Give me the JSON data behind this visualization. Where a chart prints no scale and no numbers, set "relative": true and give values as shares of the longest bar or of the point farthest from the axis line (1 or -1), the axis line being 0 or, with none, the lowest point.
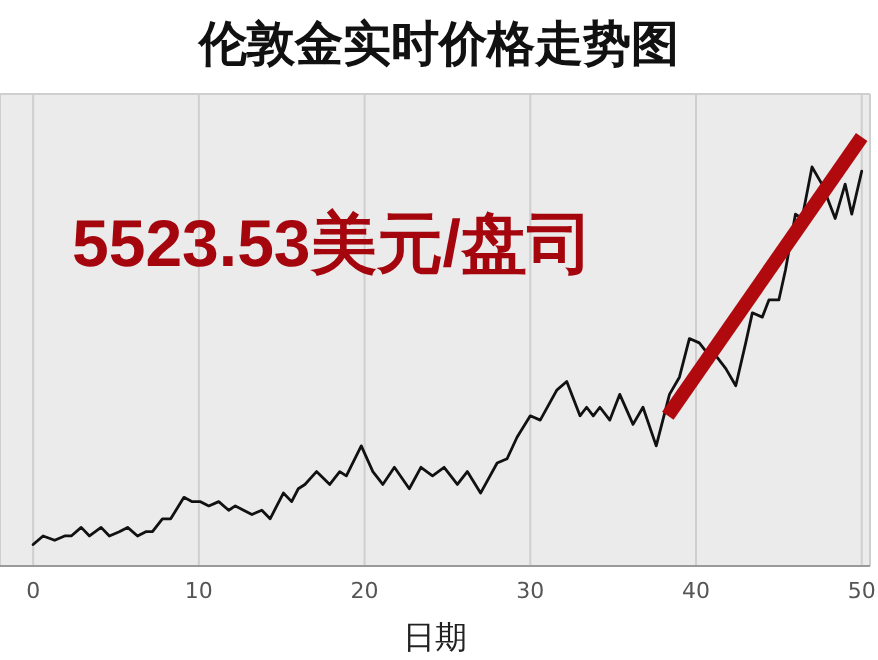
{
  "chart_data": {
    "type": "line",
    "title": "伦敦金实时价格走势图",
    "xlabel": "日期",
    "relative": true,
    "grid": true,
    "legend": false,
    "marker": "none",
    "xlim": [
      -2,
      50.5
    ],
    "xticks": [
      0,
      10,
      20,
      30,
      40,
      50
    ],
    "annotations": [
      "5523.53美元/盘司"
    ],
    "series": [
      {
        "color": "#111111",
        "x": [
          0,
          0.6,
          1.3,
          1.9,
          2.3,
          2.9,
          3.4,
          4.1,
          4.6,
          5.2,
          5.7,
          6.3,
          6.8,
          7.2,
          7.8,
          8.3,
          9.1,
          9.6,
          10.1,
          10.6,
          11.2,
          11.8,
          12.2,
          12.7,
          13.2,
          13.8,
          14.3,
          15.1,
          15.6,
          16,
          16.4,
          17.1,
          17.9,
          18.5,
          18.9,
          19.8,
          20.5,
          21.1,
          21.8,
          22.7,
          23.4,
          24.1,
          24.8,
          25.6,
          26.2,
          27,
          28,
          28.6,
          29.2,
          30,
          30.6,
          31.6,
          32.2,
          33,
          33.4,
          33.8,
          34.2,
          34.8,
          35.4,
          36.2,
          36.8,
          37.6,
          38.4,
          39,
          39.6,
          40.2,
          40.6,
          41,
          41.8,
          42.4,
          43,
          43.4,
          44,
          44.4,
          45,
          45.4,
          46,
          46.4,
          47,
          47.6,
          48.4,
          49,
          49.4,
          50
        ],
        "values": [
          0.05,
          0.07,
          0.06,
          0.07,
          0.07,
          0.09,
          0.07,
          0.09,
          0.07,
          0.08,
          0.09,
          0.07,
          0.08,
          0.08,
          0.11,
          0.11,
          0.16,
          0.15,
          0.15,
          0.14,
          0.15,
          0.13,
          0.14,
          0.13,
          0.12,
          0.13,
          0.11,
          0.17,
          0.15,
          0.18,
          0.19,
          0.22,
          0.19,
          0.22,
          0.21,
          0.28,
          0.22,
          0.19,
          0.23,
          0.18,
          0.23,
          0.21,
          0.23,
          0.19,
          0.22,
          0.17,
          0.24,
          0.25,
          0.3,
          0.35,
          0.34,
          0.41,
          0.43,
          0.35,
          0.37,
          0.35,
          0.37,
          0.34,
          0.4,
          0.33,
          0.37,
          0.28,
          0.4,
          0.44,
          0.53,
          0.52,
          0.5,
          0.5,
          0.46,
          0.42,
          0.52,
          0.59,
          0.58,
          0.62,
          0.62,
          0.69,
          0.82,
          0.81,
          0.93,
          0.89,
          0.81,
          0.89,
          0.82,
          0.92
        ]
      },
      {
        "type": "line",
        "color": "#b00a0f",
        "x": [
          38.3,
          50
        ],
        "values": [
          0.35,
          1
        ]
      }
    ]
  }
}
